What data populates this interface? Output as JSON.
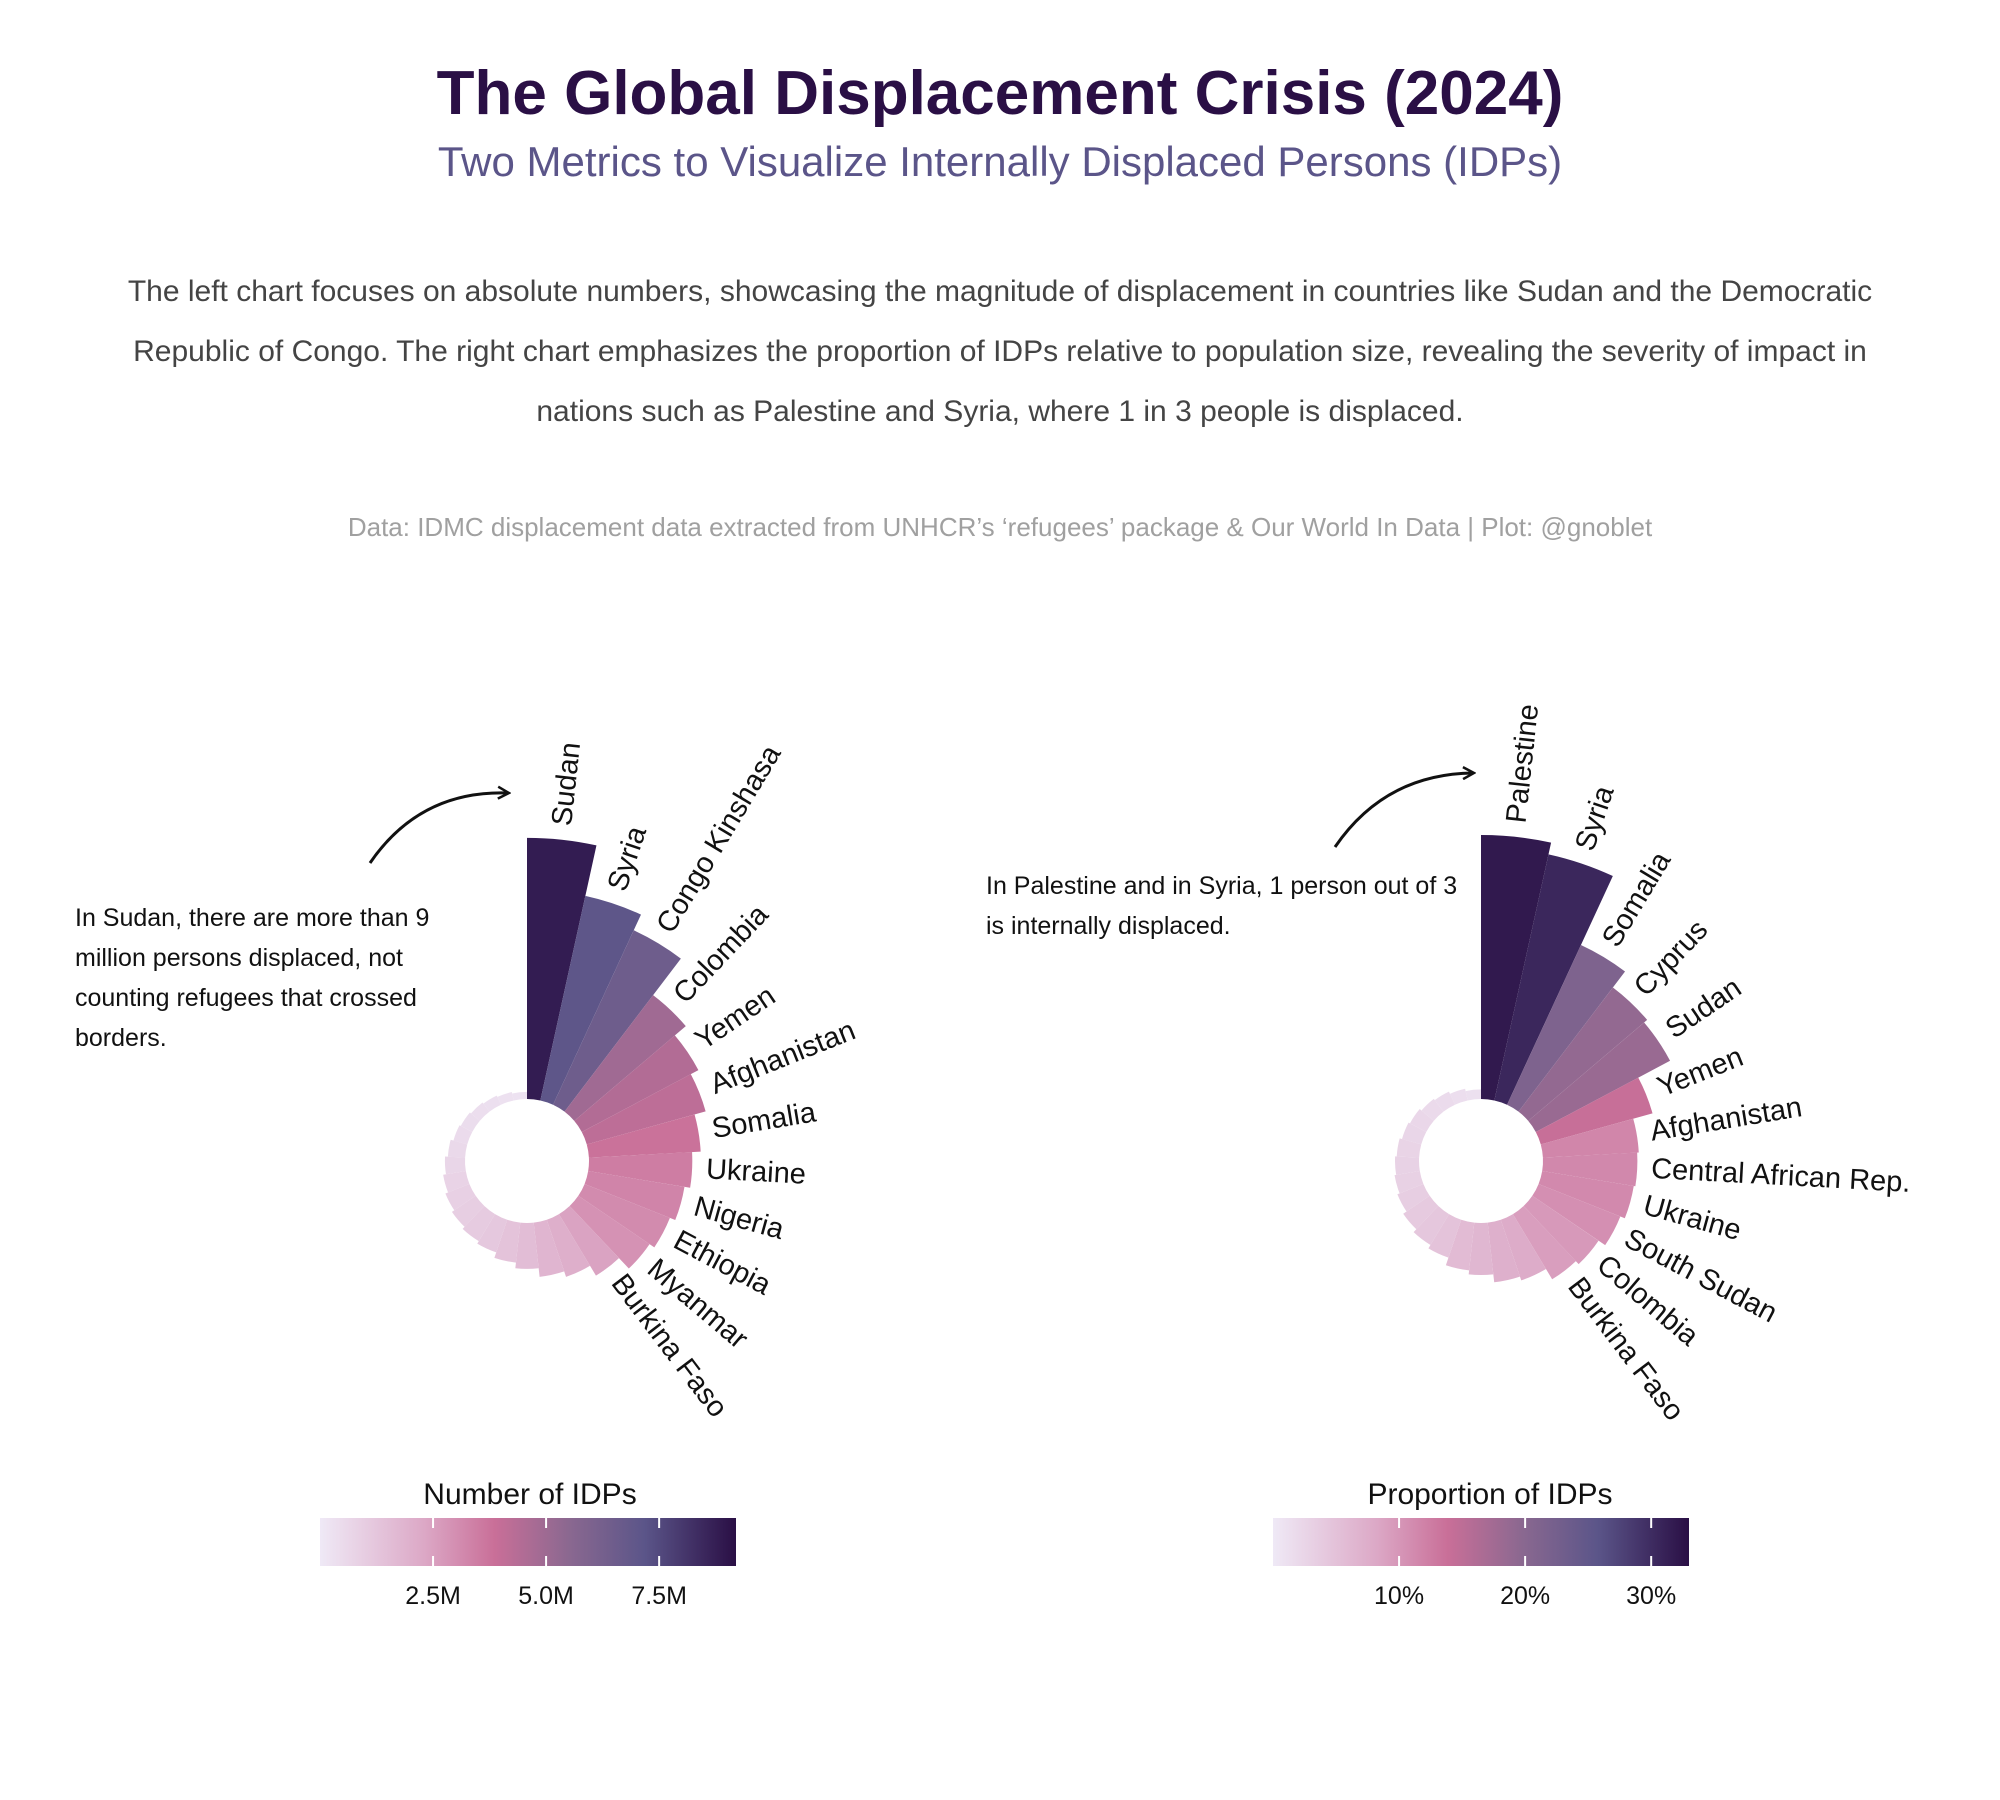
{
  "header": {
    "title": "The Global Displacement Crisis (2024)",
    "subtitle": "Two Metrics to Visualize Internally Displaced Persons (IDPs)",
    "description": "The left chart focuses on absolute numbers, showcasing the magnitude of displacement in countries like Sudan and the Democratic Republic of Congo. The right chart emphasizes the proportion of IDPs relative to population size, revealing the severity of impact in nations such as Palestine and Syria, where 1 in 3 people is displaced.",
    "caption": "Data: IDMC displacement data extracted from UNHCR’s ‘refugees’ package & Our World In Data | Plot: @gnoblet"
  },
  "palette": [
    "#efe9f6",
    "#dfb2cd",
    "#c96f98",
    "#a3648f",
    "#6f638e",
    "#4f3f6c",
    "#2a0f45"
  ],
  "chart_data": [
    {
      "type": "bar",
      "subtype": "circular-bar",
      "title": "Number of IDPs",
      "annotation": "In Sudan, there are more than 9 million persons displaced, not counting refugees that crossed borders.",
      "legend": {
        "title": "Number of IDPs",
        "ticks": [
          2.5,
          5.0,
          7.5
        ],
        "tick_labels": [
          "2.5M",
          "5.0M",
          "7.5M"
        ],
        "range": [
          0,
          9.2
        ],
        "placement": "bottom"
      },
      "unit": "millions",
      "categories": [
        "Sudan",
        "Syria",
        "Congo Kinshasa",
        "Colombia",
        "Yemen",
        "Afghanistan",
        "Somalia",
        "Ukraine",
        "Nigeria",
        "Ethiopia",
        "Myanmar",
        "Burkina Faso",
        "",
        "",
        "",
        "",
        "",
        "",
        "",
        "",
        "",
        "",
        "",
        "",
        "",
        "",
        "",
        "",
        ""
      ],
      "values": [
        9.1,
        7.3,
        6.7,
        5.1,
        4.6,
        4.3,
        3.9,
        3.6,
        3.4,
        3.2,
        3.0,
        2.5,
        2.1,
        1.9,
        1.6,
        1.4,
        1.2,
        1.1,
        1.0,
        0.9,
        0.8,
        0.7,
        0.6,
        0.5,
        0.45,
        0.4,
        0.35,
        0.3,
        0.25
      ]
    },
    {
      "type": "bar",
      "subtype": "circular-bar",
      "title": "Proportion of IDPs",
      "annotation": "In Palestine and in Syria, 1 person out of 3 is internally displaced.",
      "legend": {
        "title": "Proportion of IDPs",
        "ticks": [
          10,
          20,
          30
        ],
        "tick_labels": [
          "10%",
          "20%",
          "30%"
        ],
        "range": [
          0,
          33
        ],
        "placement": "bottom"
      },
      "unit": "percent",
      "categories": [
        "Palestine",
        "Syria",
        "Somalia",
        "Cyprus",
        "Sudan",
        "Yemen",
        "Afghanistan",
        "Central African Rep.",
        "Ukraine",
        "South Sudan",
        "Colombia",
        "Burkina Faso",
        "",
        "",
        "",
        "",
        "",
        "",
        "",
        "",
        "",
        "",
        "",
        "",
        "",
        "",
        "",
        "",
        ""
      ],
      "values": [
        33.0,
        31.5,
        22.0,
        19.5,
        19.0,
        14.5,
        12.0,
        11.8,
        11.6,
        11.0,
        10.0,
        9.5,
        8.0,
        7.5,
        6.5,
        6.0,
        5.0,
        4.5,
        4.0,
        3.5,
        3.2,
        3.0,
        2.8,
        2.5,
        2.3,
        2.0,
        1.8,
        1.5,
        1.2
      ]
    }
  ]
}
